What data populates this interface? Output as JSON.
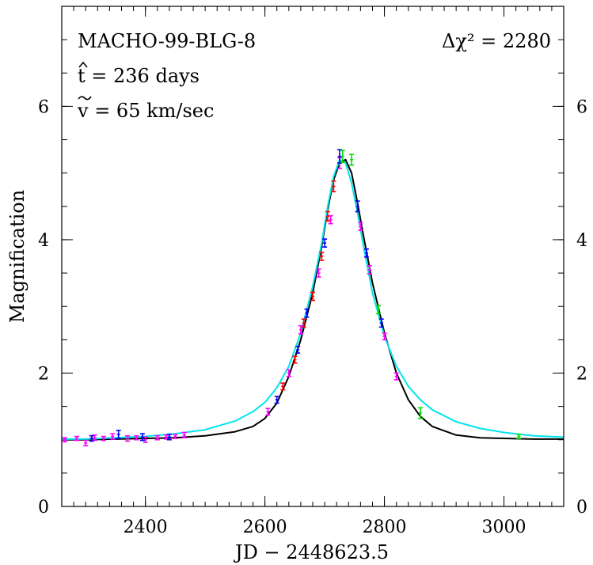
{
  "chart_data": {
    "type": "line",
    "title": "MACHO-99-BLG-8",
    "xlabel": "JD  −  2448623.5",
    "ylabel": "Magnification",
    "xlim": [
      2260,
      3100
    ],
    "ylim": [
      0,
      7.5
    ],
    "x_ticks_major": [
      2400,
      2600,
      2800,
      3000
    ],
    "x_ticks_minor_step": 20,
    "y_ticks_major": [
      0,
      2,
      4,
      6
    ],
    "y_ticks_minor_step": 0.5,
    "grid": false,
    "annotations": {
      "delta_chi2": "Δχ²  =  2280",
      "t_hat": "t  =  236  days",
      "v_tilde": "v  =  65  km/sec"
    },
    "series": [
      {
        "kind": "model_parallax",
        "color": "#000000",
        "x": [
          2260,
          2300,
          2350,
          2400,
          2450,
          2500,
          2550,
          2580,
          2600,
          2620,
          2640,
          2660,
          2680,
          2695,
          2705,
          2715,
          2725,
          2735,
          2745,
          2755,
          2765,
          2780,
          2800,
          2820,
          2840,
          2860,
          2880,
          2920,
          2960,
          3000,
          3050,
          3100
        ],
        "y": [
          1.0,
          1.0,
          1.01,
          1.02,
          1.03,
          1.06,
          1.12,
          1.2,
          1.32,
          1.55,
          1.95,
          2.5,
          3.2,
          3.9,
          4.45,
          4.9,
          5.15,
          5.2,
          5.0,
          4.55,
          4.05,
          3.35,
          2.6,
          2.0,
          1.6,
          1.35,
          1.2,
          1.07,
          1.03,
          1.02,
          1.01,
          1.01
        ]
      },
      {
        "kind": "model_standard",
        "color": "#00e5ee",
        "x": [
          2260,
          2300,
          2350,
          2400,
          2450,
          2500,
          2550,
          2580,
          2600,
          2620,
          2640,
          2660,
          2680,
          2695,
          2705,
          2715,
          2725,
          2735,
          2745,
          2755,
          2765,
          2780,
          2800,
          2820,
          2840,
          2860,
          2880,
          2920,
          2960,
          3000,
          3050,
          3100
        ],
        "y": [
          1.01,
          1.01,
          1.03,
          1.05,
          1.09,
          1.15,
          1.28,
          1.42,
          1.56,
          1.78,
          2.1,
          2.6,
          3.3,
          3.95,
          4.5,
          4.95,
          5.2,
          5.15,
          4.85,
          4.4,
          3.9,
          3.2,
          2.55,
          2.1,
          1.8,
          1.6,
          1.45,
          1.27,
          1.17,
          1.11,
          1.06,
          1.04
        ]
      },
      {
        "kind": "points",
        "color": "#ff00ff",
        "x": [
          2265,
          2285,
          2300,
          2315,
          2330,
          2345,
          2370,
          2385,
          2400,
          2420,
          2435,
          2450,
          2465,
          2605,
          2640,
          2660,
          2690,
          2710,
          2725,
          2760,
          2775,
          2800,
          2820
        ],
        "y": [
          1.0,
          1.02,
          0.95,
          1.03,
          1.02,
          1.05,
          1.02,
          1.03,
          1.0,
          1.03,
          1.04,
          1.05,
          1.07,
          1.42,
          2.0,
          2.65,
          3.5,
          4.3,
          5.15,
          4.2,
          3.55,
          2.55,
          1.95
        ],
        "err": [
          0.03,
          0.03,
          0.04,
          0.04,
          0.03,
          0.04,
          0.04,
          0.03,
          0.04,
          0.03,
          0.03,
          0.03,
          0.04,
          0.05,
          0.05,
          0.06,
          0.06,
          0.06,
          0.08,
          0.06,
          0.06,
          0.05,
          0.05
        ]
      },
      {
        "kind": "points",
        "color": "#0000ff",
        "x": [
          2310,
          2355,
          2395,
          2440,
          2620,
          2655,
          2670,
          2700,
          2725,
          2755,
          2770,
          2795
        ],
        "y": [
          1.02,
          1.08,
          1.04,
          1.04,
          1.6,
          2.35,
          2.9,
          3.95,
          5.25,
          4.5,
          3.8,
          2.75
        ],
        "err": [
          0.04,
          0.06,
          0.05,
          0.04,
          0.05,
          0.05,
          0.06,
          0.06,
          0.1,
          0.08,
          0.06,
          0.06
        ]
      },
      {
        "kind": "points",
        "color": "#ff0000",
        "x": [
          2630,
          2650,
          2665,
          2680,
          2695,
          2705,
          2715
        ],
        "y": [
          1.8,
          2.2,
          2.75,
          3.15,
          3.75,
          4.35,
          4.8
        ],
        "err": [
          0.05,
          0.05,
          0.06,
          0.06,
          0.06,
          0.07,
          0.08
        ]
      },
      {
        "kind": "points",
        "color": "#00dd00",
        "x": [
          2730,
          2745,
          2790,
          2860,
          3025
        ],
        "y": [
          5.25,
          5.2,
          2.95,
          1.4,
          1.05
        ],
        "err": [
          0.09,
          0.08,
          0.06,
          0.08,
          0.03
        ]
      }
    ]
  }
}
